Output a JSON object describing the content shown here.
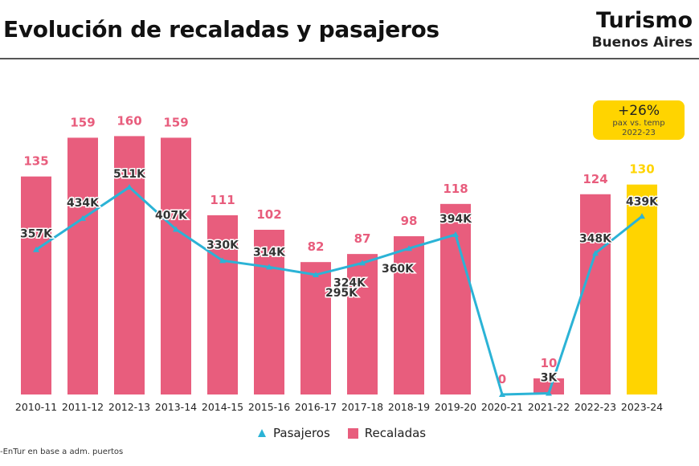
{
  "header": {
    "title": "Evolución de recaladas y pasajeros",
    "logo_line1": "Turismo",
    "logo_line2": "Buenos Aires"
  },
  "badge": {
    "value": "+26%",
    "line1": "pax vs. temp",
    "line2": "2022-23"
  },
  "source": "-EnTur en base a adm. puertos",
  "colors": {
    "bars": "#E85D7D",
    "highlight": "#FFD400",
    "line": "#2BB3D6"
  },
  "chart_data": {
    "type": "bar+line",
    "categories": [
      "2010-11",
      "2011-12",
      "2012-13",
      "2013-14",
      "2014-15",
      "2015-16",
      "2016-17",
      "2017-18",
      "2018-19",
      "2019-20",
      "2020-21",
      "2021-22",
      "2022-23",
      "2023-24"
    ],
    "series": [
      {
        "name": "Recaladas",
        "type": "bar",
        "values": [
          135,
          159,
          160,
          159,
          111,
          102,
          82,
          87,
          98,
          118,
          0,
          10,
          124,
          130
        ],
        "labels": [
          "135",
          "159",
          "160",
          "159",
          "111",
          "102",
          "82",
          "87",
          "98",
          "118",
          "0",
          "10",
          "124",
          "130"
        ]
      },
      {
        "name": "Pasajeros",
        "type": "line",
        "values": [
          357,
          434,
          511,
          407,
          330,
          314,
          295,
          324,
          360,
          394,
          0,
          3,
          348,
          439
        ],
        "unit": "K",
        "labels": [
          "357K",
          "434K",
          "511K",
          "407K",
          "330K",
          "314K",
          "295K",
          "324K",
          "360K",
          "394K",
          "",
          "3K",
          "348K",
          "439K"
        ]
      }
    ],
    "highlight_category": "2023-24",
    "legend": {
      "position": "bottom",
      "items": [
        "Pasajeros",
        "Recaladas"
      ]
    }
  }
}
